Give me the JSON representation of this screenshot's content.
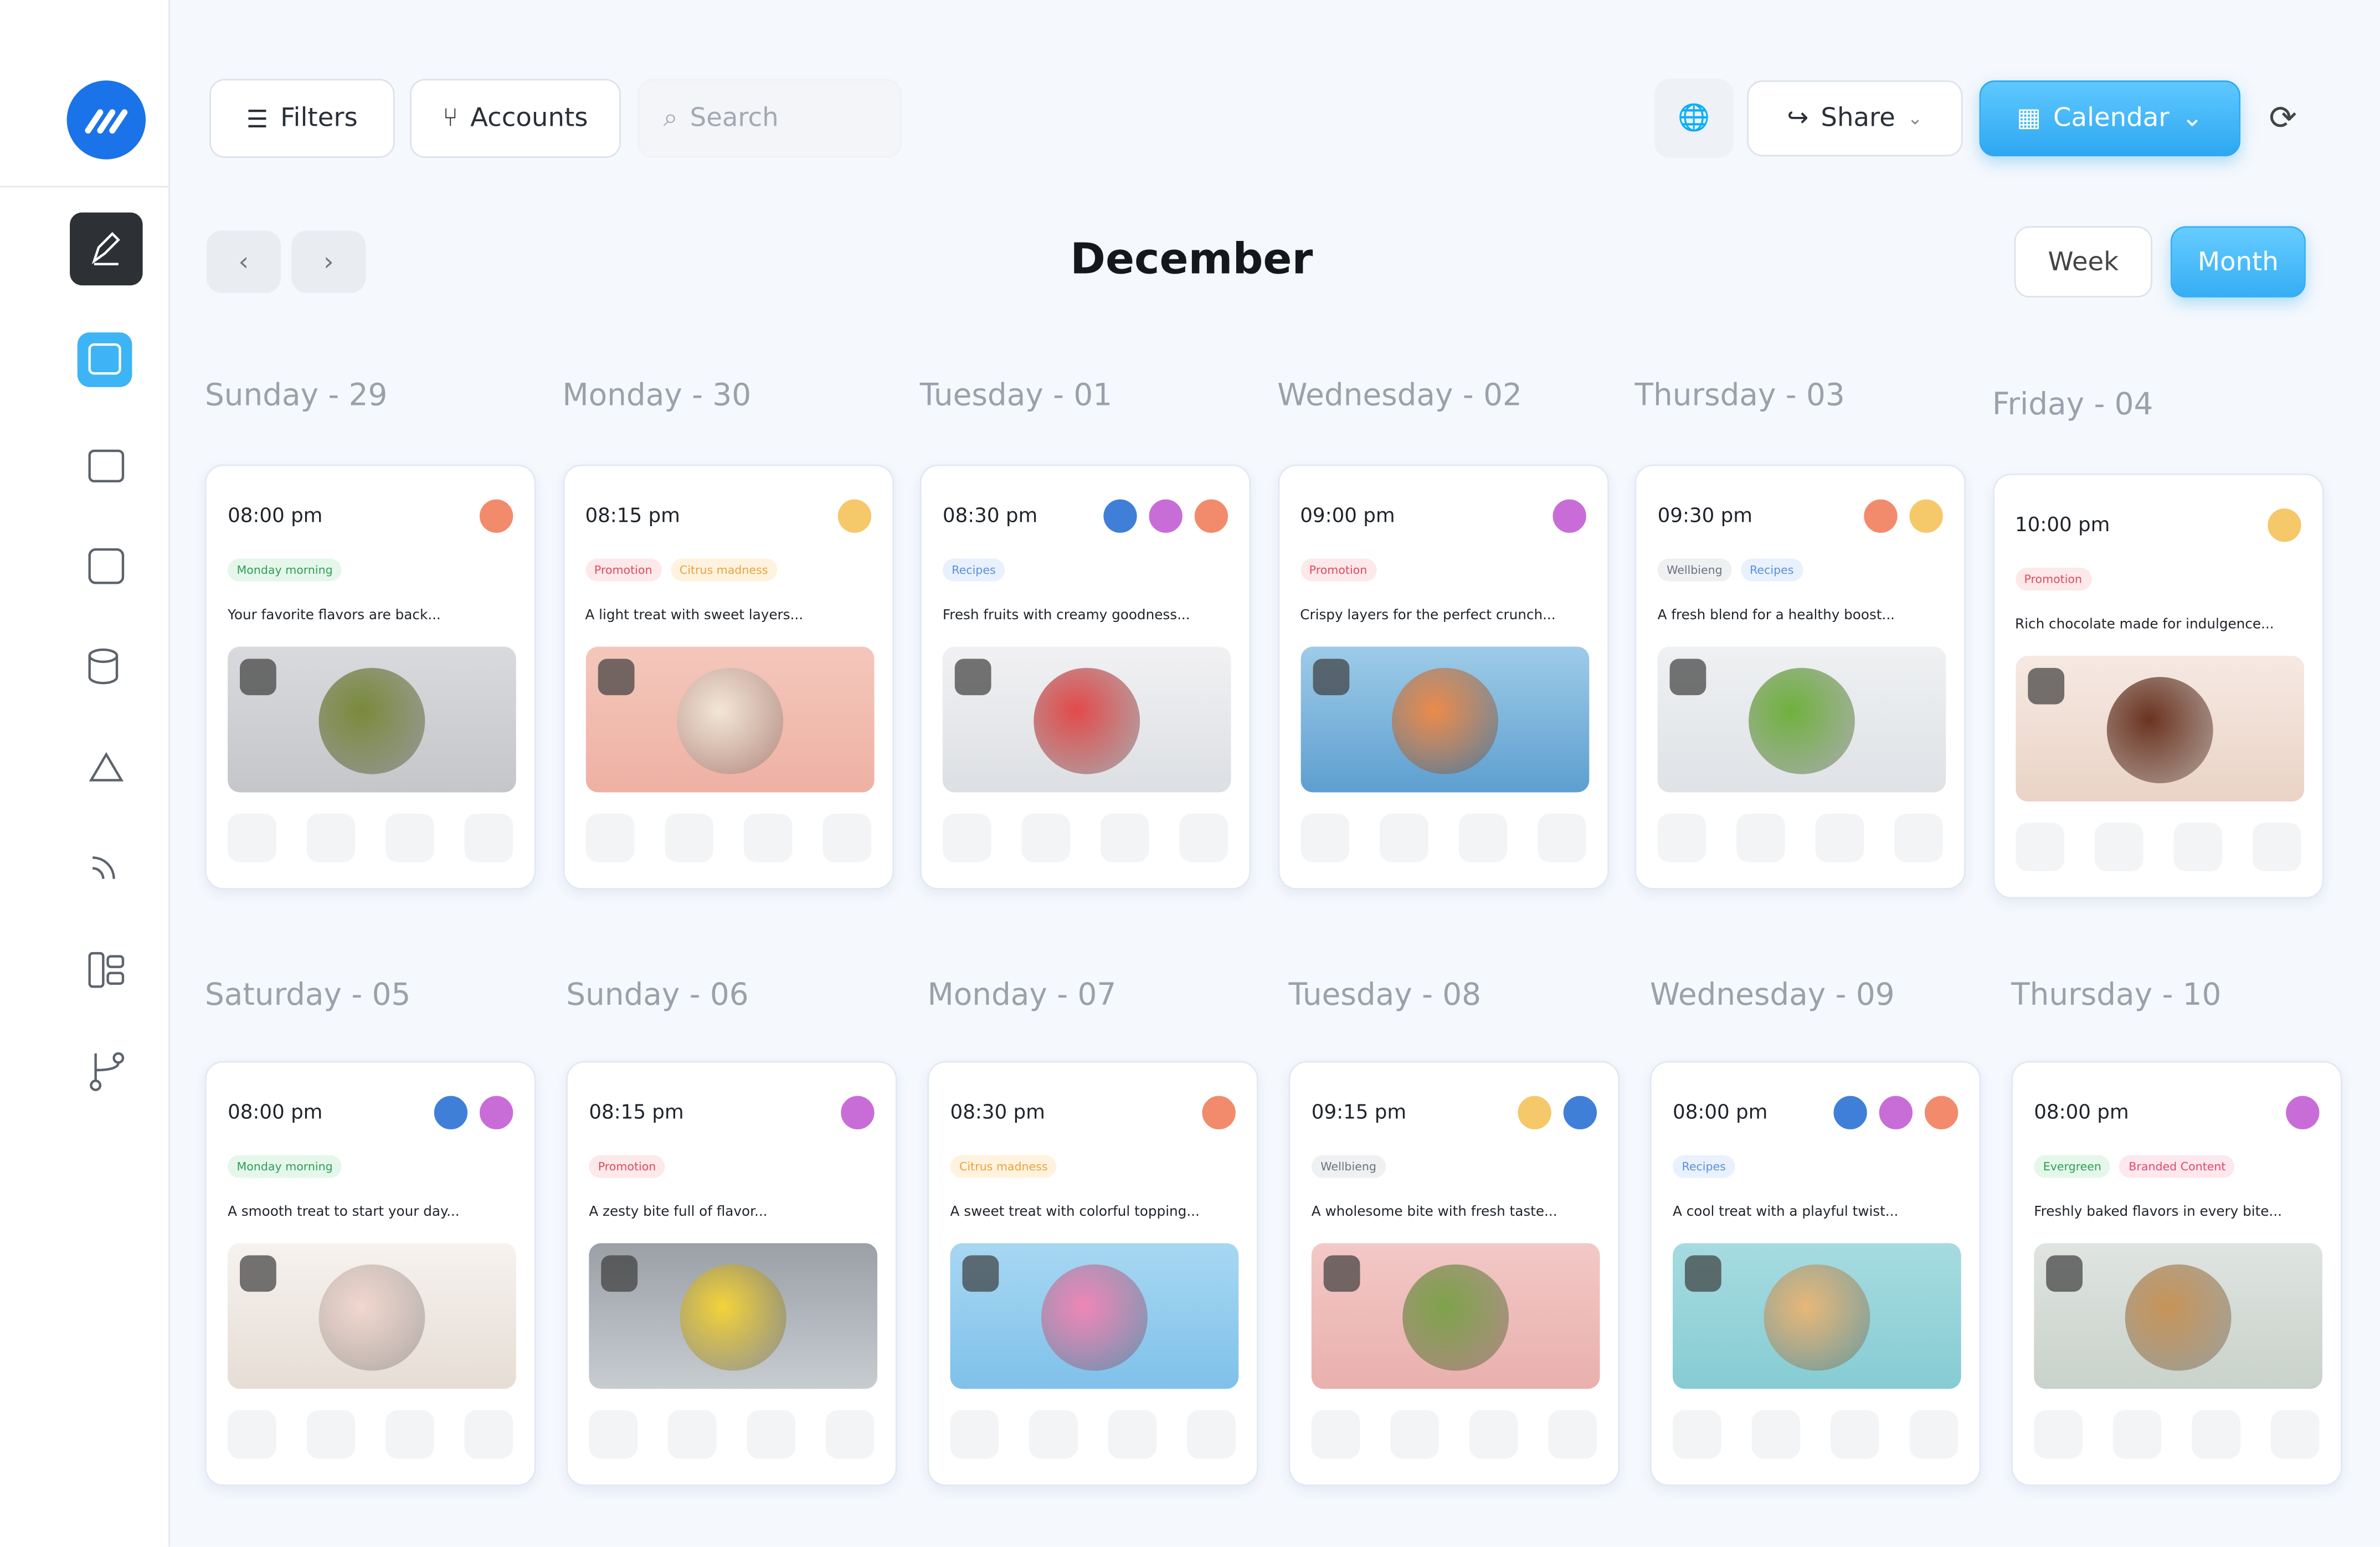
{
  "toolbar": {
    "filters": "Filters",
    "accounts": "Accounts",
    "search_placeholder": "Search",
    "share": "Share",
    "calendar": "Calendar"
  },
  "calendar": {
    "month": "December",
    "views": [
      "Week",
      "Month"
    ],
    "days": [
      {
        "label": "Sunday - 29",
        "time": "08:00 pm",
        "tags": [
          "Monday morning"
        ],
        "caption": "Your favorite flavors are back..."
      },
      {
        "label": "Monday - 30",
        "time": "08:15 pm",
        "tags": [
          "Promotion",
          "Citrus madness"
        ],
        "caption": "A light treat with sweet layers..."
      },
      {
        "label": "Tuesday - 01",
        "time": "08:30 pm",
        "tags": [
          "Recipes"
        ],
        "caption": "Fresh fruits with creamy goodness..."
      },
      {
        "label": "Wednesday - 02",
        "time": "09:00 pm",
        "tags": [
          "Promotion"
        ],
        "caption": "Crispy layers for the perfect crunch..."
      },
      {
        "label": "Thursday - 03",
        "time": "09:30 pm",
        "tags": [
          "Wellbieng",
          "Recipes"
        ],
        "caption": "A fresh blend for a healthy boost..."
      },
      {
        "label": "Friday - 04",
        "time": "10:00 pm",
        "tags": [
          "Promotion"
        ],
        "caption": "Rich chocolate made for indulgence..."
      },
      {
        "label": "Saturday - 05",
        "time": "08:00 pm",
        "tags": [
          "Monday morning"
        ],
        "caption": "A smooth treat to start your day..."
      },
      {
        "label": "Sunday - 06",
        "time": "08:15 pm",
        "tags": [
          "Promotion"
        ],
        "caption": "A zesty bite full of flavor..."
      },
      {
        "label": "Monday - 07",
        "time": "08:30 pm",
        "tags": [
          "Citrus madness"
        ],
        "caption": "A sweet treat with colorful topping..."
      },
      {
        "label": "Tuesday - 08",
        "time": "09:15 pm",
        "tags": [
          "Wellbieng"
        ],
        "caption": "A wholesome bite with fresh taste..."
      },
      {
        "label": "Wednesday - 09",
        "time": "08:00 pm",
        "tags": [
          "Recipes"
        ],
        "caption": "A cool treat with a playful twist..."
      },
      {
        "label": "Thursday - 10",
        "time": "08:00 pm",
        "tags": [
          "Evergreen",
          "Branded Content"
        ],
        "caption": "Freshly baked flavors in every bite..."
      }
    ]
  }
}
